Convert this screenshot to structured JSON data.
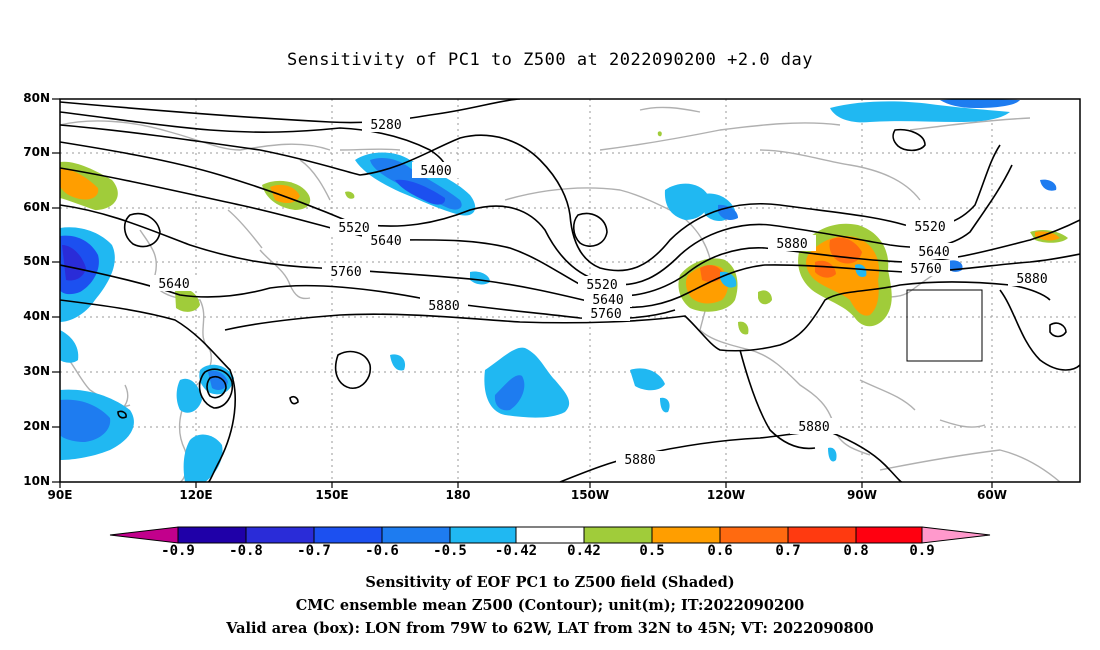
{
  "title": "Sensitivity of PC1 to Z500 at 2022090200 +2.0 day",
  "lat_labels": [
    "80N",
    "70N",
    "60N",
    "50N",
    "40N",
    "30N",
    "20N",
    "10N"
  ],
  "lon_labels": [
    "90E",
    "120E",
    "150E",
    "180",
    "150W",
    "120W",
    "90W",
    "60W"
  ],
  "contour_labels": [
    "5280",
    "5400",
    "5520",
    "5640",
    "5760",
    "5880",
    "5640",
    "5520",
    "5640",
    "5760",
    "5880",
    "5520",
    "5640",
    "5760",
    "5880",
    "5880",
    "5880"
  ],
  "valid_box": {
    "lon_range": [
      "79W",
      "62W"
    ],
    "lat_range": [
      "32N",
      "45N"
    ]
  },
  "colorbar": {
    "labels": [
      "-0.9",
      "-0.8",
      "-0.7",
      "-0.6",
      "-0.5",
      "-0.42",
      "0.42",
      "0.5",
      "0.6",
      "0.7",
      "0.8",
      "0.9"
    ],
    "colors": [
      "#c2008c",
      "#1f00a8",
      "#2a2cd8",
      "#1c50f0",
      "#1e7cf0",
      "#20b8f2",
      "#ffffff",
      "#a0cc3a",
      "#ff9e00",
      "#ff6a10",
      "#ff3a10",
      "#ff0010",
      "#ff99cc"
    ]
  },
  "captions": [
    "Sensitivity of EOF PC1 to Z500 field (Shaded)",
    "CMC ensemble mean Z500 (Contour); unit(m); IT:2022090200",
    "Valid area (box): LON from 79W to 62W, LAT from 32N to 45N; VT: 2022090800"
  ]
}
